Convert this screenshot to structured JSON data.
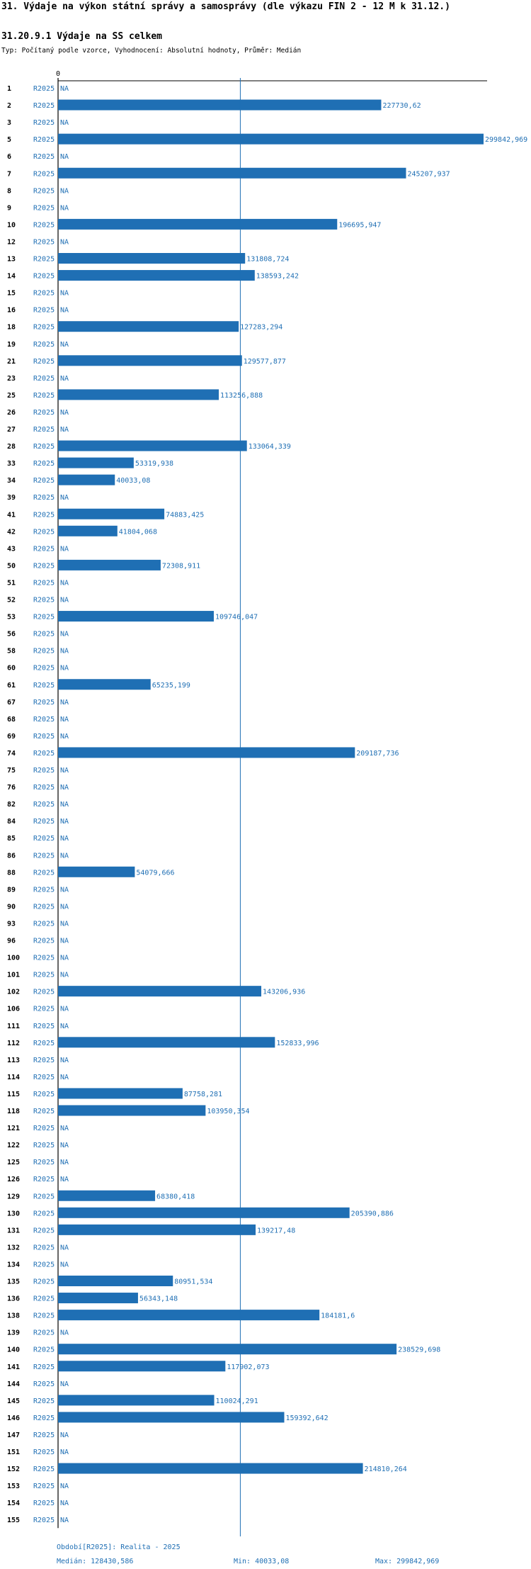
{
  "header": {
    "title": "31. Výdaje na výkon státní správy a samosprávy (dle výkazu FIN 2 - 12 M k 31.12.)",
    "subtitle": "31.20.9.1 Výdaje na SS celkem",
    "type_line": "Typ: Počítaný podle vzorce, Vyhodnocení: Absolutní hodnoty, Průměr: Medián"
  },
  "chart_data": {
    "type": "bar",
    "orientation": "horizontal",
    "title": "31.20.9.1 Výdaje na SS celkem",
    "period_label": "R2025",
    "na_label": "NA",
    "axis_zero_label": "0",
    "xlim": [
      0,
      299842.969
    ],
    "median": 128430.586,
    "categories": [
      "1",
      "2",
      "3",
      "5",
      "6",
      "7",
      "8",
      "9",
      "10",
      "12",
      "13",
      "14",
      "15",
      "16",
      "18",
      "19",
      "21",
      "23",
      "25",
      "26",
      "27",
      "28",
      "33",
      "34",
      "39",
      "41",
      "42",
      "43",
      "50",
      "51",
      "52",
      "53",
      "56",
      "58",
      "60",
      "61",
      "67",
      "68",
      "69",
      "74",
      "75",
      "76",
      "82",
      "84",
      "85",
      "86",
      "88",
      "89",
      "90",
      "93",
      "96",
      "100",
      "101",
      "102",
      "106",
      "111",
      "112",
      "113",
      "114",
      "115",
      "118",
      "121",
      "122",
      "125",
      "126",
      "129",
      "130",
      "131",
      "132",
      "134",
      "135",
      "136",
      "138",
      "139",
      "140",
      "141",
      "144",
      "145",
      "146",
      "147",
      "151",
      "152",
      "153",
      "154",
      "155"
    ],
    "values": [
      null,
      227730.62,
      null,
      299842.969,
      null,
      245207.937,
      null,
      null,
      196695.947,
      null,
      131808.724,
      138593.242,
      null,
      null,
      127283.294,
      null,
      129577.877,
      null,
      113256.888,
      null,
      null,
      133064.339,
      53319.938,
      40033.08,
      null,
      74883.425,
      41804.068,
      null,
      72308.911,
      null,
      null,
      109746.047,
      null,
      null,
      null,
      65235.199,
      null,
      null,
      null,
      209187.736,
      null,
      null,
      null,
      null,
      null,
      null,
      54079.666,
      null,
      null,
      null,
      null,
      null,
      null,
      143206.936,
      null,
      null,
      152833.996,
      null,
      null,
      87758.281,
      103950.354,
      null,
      null,
      null,
      null,
      68380.418,
      205390.886,
      139217.48,
      null,
      null,
      80951.534,
      56343.148,
      184181.6,
      null,
      238529.698,
      117902.073,
      null,
      110024.291,
      159392.642,
      null,
      null,
      214810.264,
      null,
      null,
      null
    ],
    "value_labels": [
      "",
      "227730,62",
      "",
      "299842,969",
      "",
      "245207,937",
      "",
      "",
      "196695,947",
      "",
      "131808,724",
      "138593,242",
      "",
      "",
      "127283,294",
      "",
      "129577,877",
      "",
      "113256,888",
      "",
      "",
      "133064,339",
      "53319,938",
      "40033,08",
      "",
      "74883,425",
      "41804,068",
      "",
      "72308,911",
      "",
      "",
      "109746,047",
      "",
      "",
      "",
      "65235,199",
      "",
      "",
      "",
      "209187,736",
      "",
      "",
      "",
      "",
      "",
      "",
      "54079,666",
      "",
      "",
      "",
      "",
      "",
      "",
      "143206,936",
      "",
      "",
      "152833,996",
      "",
      "",
      "87758,281",
      "103950,354",
      "",
      "",
      "",
      "",
      "68380,418",
      "205390,886",
      "139217,48",
      "",
      "",
      "80951,534",
      "56343,148",
      "184181,6",
      "",
      "238529,698",
      "117902,073",
      "",
      "110024,291",
      "159392,642",
      "",
      "",
      "214810,264",
      "",
      "",
      ""
    ],
    "colors": {
      "bar": "#1f6fb4",
      "text": "#1f6fb4",
      "median_line": "#1f6fb4"
    }
  },
  "footer": {
    "period": "Období[R2025]: Realita - 2025",
    "median": "Medián: 128430,586",
    "min": "Min: 40033,08",
    "max": "Max: 299842,969"
  }
}
